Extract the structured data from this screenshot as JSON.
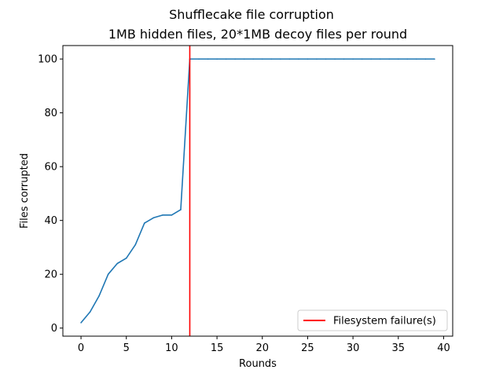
{
  "chart_data": {
    "type": "line",
    "title": "Shufflecake file corruption",
    "subtitle": "1MB hidden files, 20*1MB decoy files per round",
    "xlabel": "Rounds",
    "ylabel": "Files corrupted",
    "xlim": [
      -2.0,
      41.0
    ],
    "ylim": [
      -3.0,
      105.0
    ],
    "xticks": [
      0,
      5,
      10,
      15,
      20,
      25,
      30,
      35,
      40
    ],
    "yticks": [
      0,
      20,
      40,
      60,
      80,
      100
    ],
    "grid": false,
    "series": [
      {
        "color": "#1f77b4",
        "x": [
          0,
          1,
          2,
          3,
          4,
          5,
          6,
          7,
          8,
          9,
          10,
          11,
          12,
          13,
          14,
          15,
          16,
          17,
          18,
          19,
          20,
          21,
          22,
          23,
          24,
          25,
          26,
          27,
          28,
          29,
          30,
          31,
          32,
          33,
          34,
          35,
          36,
          37,
          38,
          39
        ],
        "y": [
          2,
          6,
          12,
          20,
          24,
          26,
          31,
          39,
          41,
          42,
          42,
          44,
          100,
          100,
          100,
          100,
          100,
          100,
          100,
          100,
          100,
          100,
          100,
          100,
          100,
          100,
          100,
          100,
          100,
          100,
          100,
          100,
          100,
          100,
          100,
          100,
          100,
          100,
          100,
          100
        ]
      }
    ],
    "vlines": [
      {
        "x": 12,
        "name": "Filesystem failure(s)",
        "color": "#ff0000"
      }
    ],
    "legend": {
      "position": "lower-right",
      "entries": [
        {
          "label": "Filesystem failure(s)",
          "color": "#ff0000"
        }
      ]
    }
  }
}
